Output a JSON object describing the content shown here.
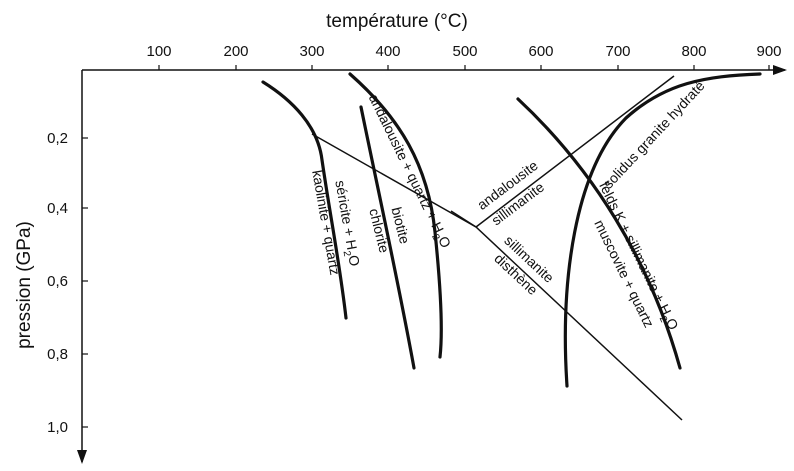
{
  "x_axis": {
    "title": "température (°C)",
    "ticks": [
      "100",
      "200",
      "300",
      "400",
      "500",
      "600",
      "700",
      "800",
      "900"
    ]
  },
  "y_axis": {
    "title": "pression (GPa)",
    "ticks": [
      "0,2",
      "0,4",
      "0,6",
      "0,8",
      "1,0"
    ]
  },
  "curves": {
    "kaolinite": {
      "line1": "séricite + H",
      "line1_sub": "2",
      "line1_end": "O",
      "line2": "kaolinite + quartz"
    },
    "biotite": {
      "line1": "biotite",
      "line2": "chlorite"
    },
    "andalousite_quartz": {
      "line1": "andalousite + quartz + H",
      "line1_sub": "2",
      "line1_end": "O"
    },
    "andalousite_sillimanite": {
      "line1": "andalousite",
      "line2": "sillimanite"
    },
    "sillimanite_disthene": {
      "line1": "sillimanite",
      "line2": "disthène"
    },
    "solidus": {
      "line1": "solidus granite hydraté"
    },
    "muscovite": {
      "line1": "felds K + sillimanite + H",
      "line1_sub": "2",
      "line1_end": "O",
      "line2": "muscovite + quartz"
    }
  },
  "colors": {
    "ink": "#111111",
    "background": "#ffffff"
  }
}
